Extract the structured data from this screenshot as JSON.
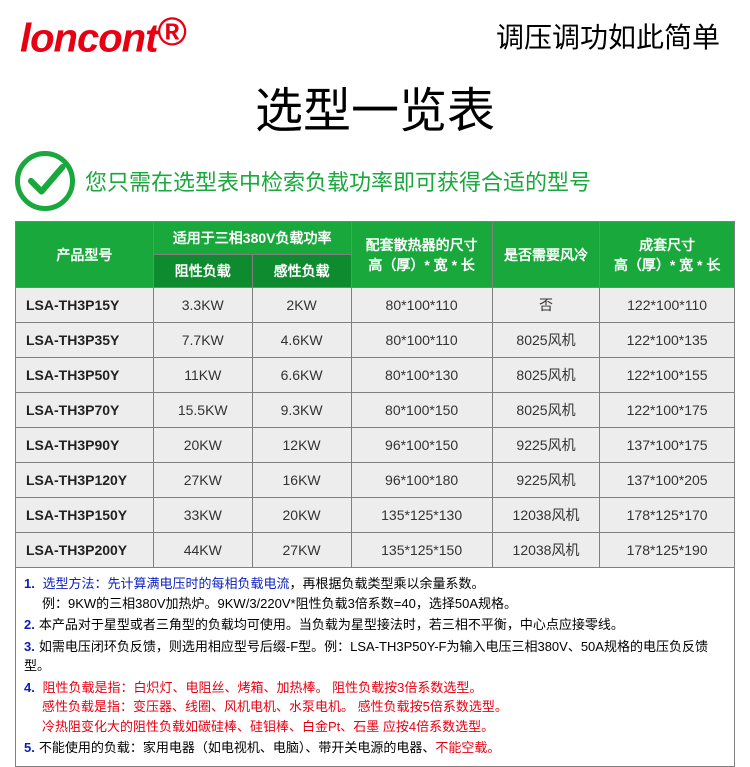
{
  "header": {
    "logo": "loncont",
    "reg": "®",
    "slogan": "调压调功如此简单"
  },
  "title": "选型一览表",
  "tip": "您只需在选型表中检索负载功率即可获得合适的型号",
  "table": {
    "headers": {
      "model": "产品型号",
      "power_group": "适用于三相380V负载功率",
      "resistive": "阻性负载",
      "inductive": "感性负载",
      "heatsink": "配套散热器的尺寸\n高（厚）* 宽 * 长",
      "cooling": "是否需要风冷",
      "set_size": "成套尺寸\n高（厚）* 宽 * 长"
    },
    "rows": [
      {
        "model": "LSA-TH3P15Y",
        "r": "3.3KW",
        "i": "2KW",
        "hs": "80*100*110",
        "cool": "否",
        "ss": "122*100*110"
      },
      {
        "model": "LSA-TH3P35Y",
        "r": "7.7KW",
        "i": "4.6KW",
        "hs": "80*100*110",
        "cool": "8025风机",
        "ss": "122*100*135"
      },
      {
        "model": "LSA-TH3P50Y",
        "r": "11KW",
        "i": "6.6KW",
        "hs": "80*100*130",
        "cool": "8025风机",
        "ss": "122*100*155"
      },
      {
        "model": "LSA-TH3P70Y",
        "r": "15.5KW",
        "i": "9.3KW",
        "hs": "80*100*150",
        "cool": "8025风机",
        "ss": "122*100*175"
      },
      {
        "model": "LSA-TH3P90Y",
        "r": "20KW",
        "i": "12KW",
        "hs": "96*100*150",
        "cool": "9225风机",
        "ss": "137*100*175"
      },
      {
        "model": "LSA-TH3P120Y",
        "r": "27KW",
        "i": "16KW",
        "hs": "96*100*180",
        "cool": "9225风机",
        "ss": "137*100*205"
      },
      {
        "model": "LSA-TH3P150Y",
        "r": "33KW",
        "i": "20KW",
        "hs": "135*125*130",
        "cool": "12038风机",
        "ss": "178*125*170"
      },
      {
        "model": "LSA-TH3P200Y",
        "r": "44KW",
        "i": "27KW",
        "hs": "135*125*150",
        "cool": "12038风机",
        "ss": "178*125*190"
      }
    ]
  },
  "notes": {
    "n1a": "选型方法：先计算满电压时的每相负载电流",
    "n1b": "，再根据负载类型乘以余量系数。",
    "n1c": "例：9KW的三相380V加热炉。9KW/3/220V*阻性负载3倍系数=40，选择50A规格。",
    "n2": "本产品对于星型或者三角型的负载均可使用。当负载为星型接法时，若三相不平衡，中心点应接零线。",
    "n3": "如需电压闭环负反馈，则选用相应型号后缀-F型。例：LSA-TH3P50Y-F为输入电压三相380V、50A规格的电压负反馈型。",
    "n4a": "阻性负载是指：白炽灯、电阻丝、烤箱、加热棒。 阻性负载按3倍系数选型。",
    "n4b": "感性负载是指：变压器、线圈、风机电机、水泵电机。 感性负载按5倍系数选型。",
    "n4c": "冷热阻变化大的阻性负载如碳硅棒、硅钼棒、白金Pt、石墨 应按4倍系数选型。",
    "n5a": "不能使用的负载：家用电器（如电视机、电脑）、带开关电源的电器、",
    "n5b": "不能空载。"
  },
  "colors": {
    "green": "#19a83c",
    "green_dark": "#0e8b2e",
    "red": "#e60012",
    "blue": "#0a1fbd"
  }
}
